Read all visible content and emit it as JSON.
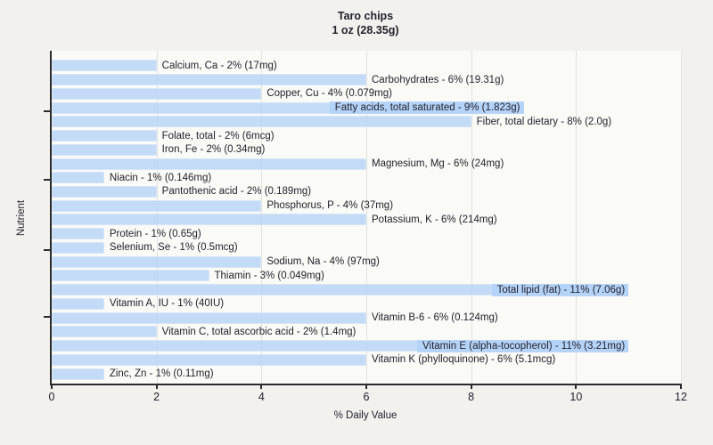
{
  "header": {
    "title": "Taro chips",
    "subtitle": "1 oz (28.35g)"
  },
  "colors": {
    "bar_fill": "#c5dcf8",
    "axis": "#2b2b2b",
    "text": "#23222b",
    "grid": "#e2e1dc",
    "plot_background": "#fafaf7",
    "page_background": "#f2f1ee"
  },
  "chart_data": {
    "type": "bar",
    "orientation": "horizontal",
    "title": "Taro chips",
    "subtitle": "1 oz (28.35g)",
    "xlabel": "% Daily Value",
    "ylabel": "Nutrient",
    "xlim": [
      0,
      12
    ],
    "xticks": [
      0,
      2,
      4,
      6,
      8,
      10,
      12
    ],
    "grid": "vertical-at-xticks",
    "legend": "none",
    "bars": [
      {
        "label": "Calcium, Ca - 2% (17mg)",
        "nutrient": "Calcium, Ca",
        "percent": 2,
        "amount": "17mg",
        "value": 2
      },
      {
        "label": "Carbohydrates - 6% (19.31g)",
        "nutrient": "Carbohydrates",
        "percent": 6,
        "amount": "19.31g",
        "value": 6
      },
      {
        "label": "Copper, Cu - 4% (0.079mg)",
        "nutrient": "Copper, Cu",
        "percent": 4,
        "amount": "0.079mg",
        "value": 4
      },
      {
        "label": "Fatty acids, total saturated - 9% (1.823g)",
        "nutrient": "Fatty acids, total saturated",
        "percent": 9,
        "amount": "1.823g",
        "value": 9
      },
      {
        "label": "Fiber, total dietary - 8% (2.0g)",
        "nutrient": "Fiber, total dietary",
        "percent": 8,
        "amount": "2.0g",
        "value": 8
      },
      {
        "label": "Folate, total - 2% (6mcg)",
        "nutrient": "Folate, total",
        "percent": 2,
        "amount": "6mcg",
        "value": 2
      },
      {
        "label": "Iron, Fe - 2% (0.34mg)",
        "nutrient": "Iron, Fe",
        "percent": 2,
        "amount": "0.34mg",
        "value": 2
      },
      {
        "label": "Magnesium, Mg - 6% (24mg)",
        "nutrient": "Magnesium, Mg",
        "percent": 6,
        "amount": "24mg",
        "value": 6
      },
      {
        "label": "Niacin - 1% (0.146mg)",
        "nutrient": "Niacin",
        "percent": 1,
        "amount": "0.146mg",
        "value": 1
      },
      {
        "label": "Pantothenic acid - 2% (0.189mg)",
        "nutrient": "Pantothenic acid",
        "percent": 2,
        "amount": "0.189mg",
        "value": 2
      },
      {
        "label": "Phosphorus, P - 4% (37mg)",
        "nutrient": "Phosphorus, P",
        "percent": 4,
        "amount": "37mg",
        "value": 4
      },
      {
        "label": "Potassium, K - 6% (214mg)",
        "nutrient": "Potassium, K",
        "percent": 6,
        "amount": "214mg",
        "value": 6
      },
      {
        "label": "Protein - 1% (0.65g)",
        "nutrient": "Protein",
        "percent": 1,
        "amount": "0.65g",
        "value": 1
      },
      {
        "label": "Selenium, Se - 1% (0.5mcg)",
        "nutrient": "Selenium, Se",
        "percent": 1,
        "amount": "0.5mcg",
        "value": 1
      },
      {
        "label": "Sodium, Na - 4% (97mg)",
        "nutrient": "Sodium, Na",
        "percent": 4,
        "amount": "97mg",
        "value": 4
      },
      {
        "label": "Thiamin - 3% (0.049mg)",
        "nutrient": "Thiamin",
        "percent": 3,
        "amount": "0.049mg",
        "value": 3
      },
      {
        "label": "Total lipid (fat) - 11% (7.06g)",
        "nutrient": "Total lipid (fat)",
        "percent": 11,
        "amount": "7.06g",
        "value": 11
      },
      {
        "label": "Vitamin A, IU - 1% (40IU)",
        "nutrient": "Vitamin A, IU",
        "percent": 1,
        "amount": "40IU",
        "value": 1
      },
      {
        "label": "Vitamin B-6 - 6% (0.124mg)",
        "nutrient": "Vitamin B-6",
        "percent": 6,
        "amount": "0.124mg",
        "value": 6
      },
      {
        "label": "Vitamin C, total ascorbic acid - 2% (1.4mg)",
        "nutrient": "Vitamin C, total ascorbic acid",
        "percent": 2,
        "amount": "1.4mg",
        "value": 2
      },
      {
        "label": "Vitamin E (alpha-tocopherol) - 11% (3.21mg)",
        "nutrient": "Vitamin E (alpha-tocopherol)",
        "percent": 11,
        "amount": "3.21mg",
        "value": 11
      },
      {
        "label": "Vitamin K (phylloquinone) - 6% (5.1mcg)",
        "nutrient": "Vitamin K (phylloquinone)",
        "percent": 6,
        "amount": "5.1mcg",
        "value": 6
      },
      {
        "label": "Zinc, Zn - 1% (0.11mg)",
        "nutrient": "Zinc, Zn",
        "percent": 1,
        "amount": "0.11mg",
        "value": 1
      }
    ]
  }
}
